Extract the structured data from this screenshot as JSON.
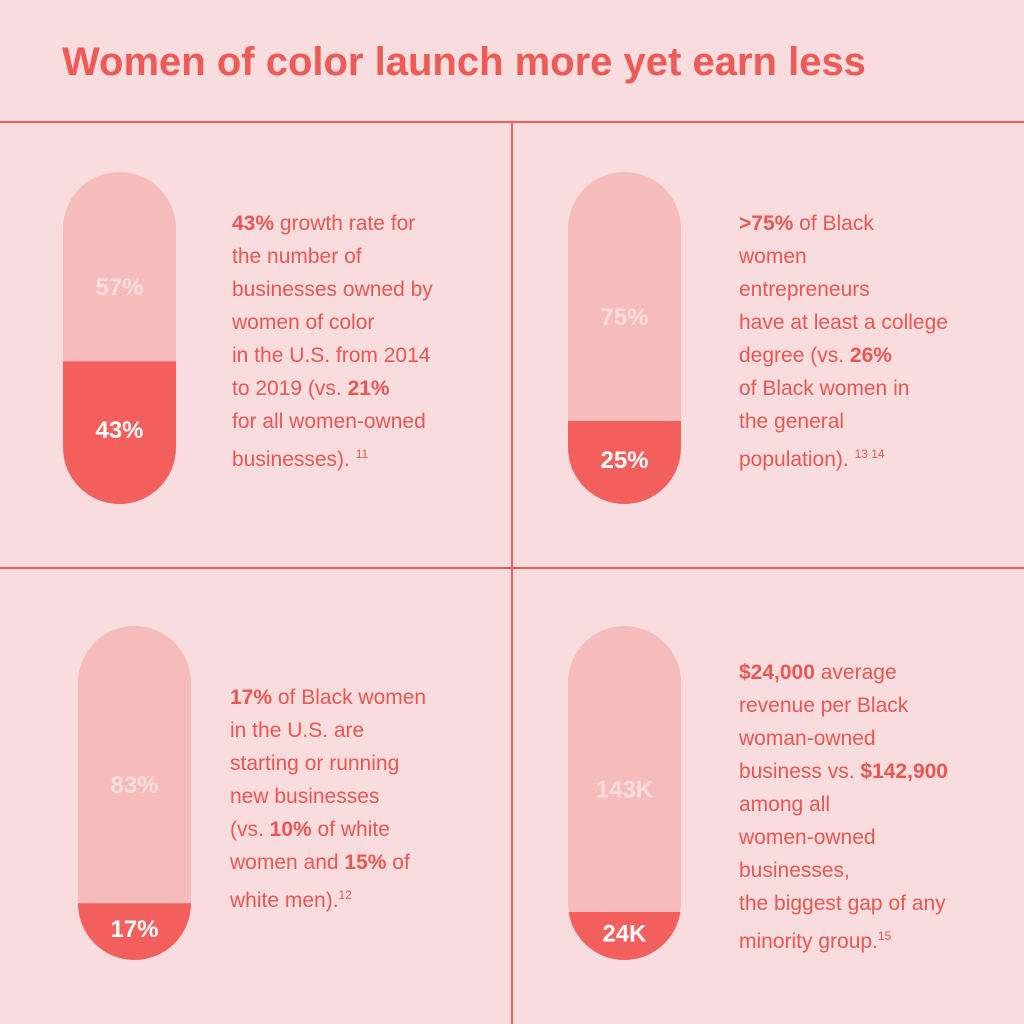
{
  "title": "Women of color launch more yet earn less",
  "panels": [
    {
      "pill": {
        "top": {
          "value": 57,
          "label": "57%"
        },
        "bottom": {
          "value": 43,
          "label": "43%"
        }
      },
      "lines": [
        [
          {
            "text": "43%",
            "style": "bold"
          },
          {
            "text": " growth rate for"
          }
        ],
        [
          {
            "text": "the number of"
          }
        ],
        [
          {
            "text": "businesses owned by"
          }
        ],
        [
          {
            "text": "women of color"
          }
        ],
        [
          {
            "text": "in the U.S. from 2014"
          }
        ],
        [
          {
            "text": "to 2019 (vs. "
          },
          {
            "text": "21%",
            "style": "bold"
          }
        ],
        [
          {
            "text": "for all women-owned"
          }
        ],
        [
          {
            "text": "businesses). "
          },
          {
            "text": "11",
            "style": "sup"
          }
        ]
      ]
    },
    {
      "pill": {
        "top": {
          "value": 75,
          "label": "75%"
        },
        "bottom": {
          "value": 25,
          "label": "25%"
        }
      },
      "lines": [
        [
          {
            "text": ">75%",
            "style": "bold"
          },
          {
            "text": " of Black"
          }
        ],
        [
          {
            "text": "women"
          }
        ],
        [
          {
            "text": "entrepreneurs"
          }
        ],
        [
          {
            "text": "have at least a college"
          }
        ],
        [
          {
            "text": "degree (vs. "
          },
          {
            "text": "26%",
            "style": "bold"
          }
        ],
        [
          {
            "text": "of Black women in"
          }
        ],
        [
          {
            "text": "the general"
          }
        ],
        [
          {
            "text": "population). "
          },
          {
            "text": "13 14",
            "style": "sup"
          }
        ]
      ]
    },
    {
      "pill": {
        "top": {
          "value": 83,
          "label": "83%"
        },
        "bottom": {
          "value": 17,
          "label": "17%"
        }
      },
      "lines": [
        [
          {
            "text": "17%",
            "style": "bold"
          },
          {
            "text": " of Black women"
          }
        ],
        [
          {
            "text": "in the U.S. are"
          }
        ],
        [
          {
            "text": "starting or running"
          }
        ],
        [
          {
            "text": "new businesses"
          }
        ],
        [
          {
            "text": "(vs. "
          },
          {
            "text": "10%",
            "style": "bold"
          },
          {
            "text": " of white"
          }
        ],
        [
          {
            "text": "women and "
          },
          {
            "text": "15%",
            "style": "bold"
          },
          {
            "text": " of"
          }
        ],
        [
          {
            "text": "white men)."
          },
          {
            "text": "12",
            "style": "sup"
          }
        ]
      ]
    },
    {
      "pill": {
        "top": {
          "value": 143000,
          "label": "143K"
        },
        "bottom": {
          "value": 24000,
          "label": "24K"
        }
      },
      "lines": [
        [
          {
            "text": "$24,000",
            "style": "bold"
          },
          {
            "text": " average"
          }
        ],
        [
          {
            "text": "revenue per Black"
          }
        ],
        [
          {
            "text": "woman-owned"
          }
        ],
        [
          {
            "text": "business vs. "
          },
          {
            "text": "$142,900",
            "style": "bold"
          }
        ],
        [
          {
            "text": "among all"
          }
        ],
        [
          {
            "text": "women-owned"
          }
        ],
        [
          {
            "text": "businesses,"
          }
        ],
        [
          {
            "text": "the biggest gap of any"
          }
        ],
        [
          {
            "text": "minority group."
          },
          {
            "text": "15",
            "style": "sup"
          }
        ]
      ]
    }
  ]
}
